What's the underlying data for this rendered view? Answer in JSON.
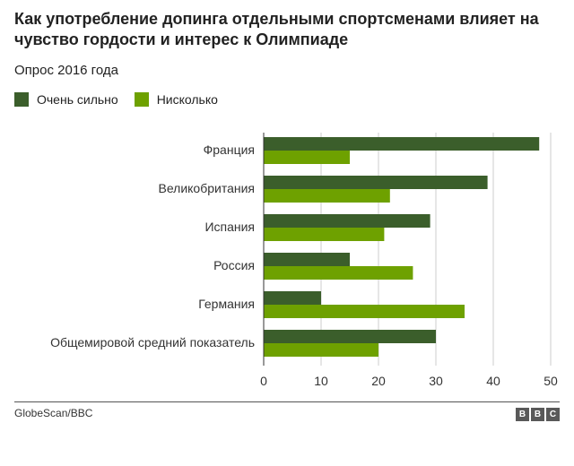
{
  "title": "Как употребление допинга отдельными спортсменами влияет на чувство гордости и интерес к Олимпиаде",
  "subtitle": "Опрос 2016 года",
  "source": "GlobeScan/BBC",
  "logo": {
    "text": "BBC",
    "letters": [
      "B",
      "B",
      "C"
    ]
  },
  "colors": {
    "series_dark": "#3b5e2b",
    "series_light": "#6ea100",
    "axis": "#333333",
    "grid": "#cccccc"
  },
  "chart_data": {
    "type": "bar",
    "orientation": "horizontal",
    "categories": [
      "Франция",
      "Великобритания",
      "Испания",
      "Россия",
      "Германия",
      "Общемировой средний показатель"
    ],
    "series": [
      {
        "name": "Очень сильно",
        "values": [
          48,
          39,
          29,
          15,
          10,
          30
        ]
      },
      {
        "name": "Нисколько",
        "values": [
          15,
          22,
          21,
          26,
          35,
          20
        ]
      }
    ],
    "xlim": [
      0,
      50
    ],
    "xticks": [
      0,
      10,
      20,
      30,
      40,
      50
    ],
    "grid": true,
    "legend": "top-left"
  }
}
